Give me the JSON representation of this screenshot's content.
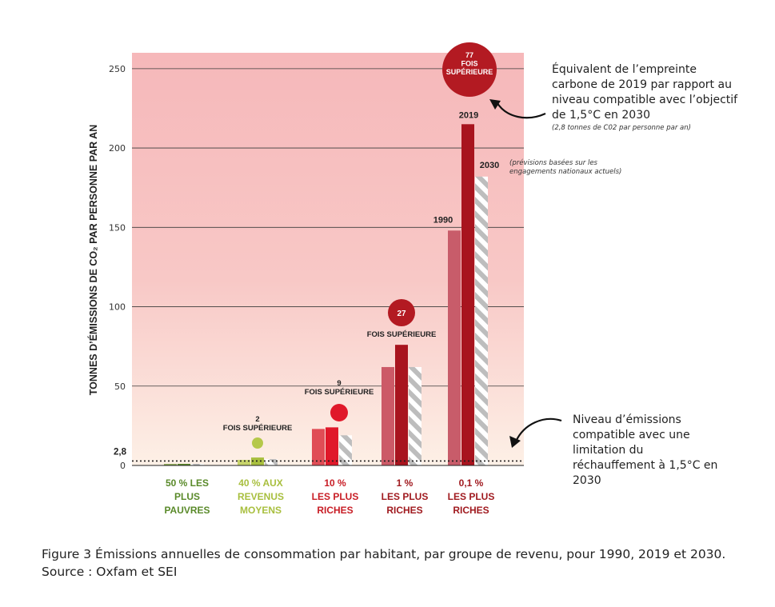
{
  "chart_data": {
    "type": "bar",
    "ylabel": "TONNES D’ÉMISSIONS DE CO₂ PAR PERSONNE PAR AN",
    "ylim": [
      0,
      260
    ],
    "yticks": [
      "0",
      "50",
      "100",
      "150",
      "200",
      "250"
    ],
    "threshold_value": 2.8,
    "threshold_label": "2,8",
    "categories": [
      [
        "50 % LES",
        "PLUS",
        "PAUVRES"
      ],
      [
        "40 % AUX",
        "REVENUS",
        "MOYENS"
      ],
      [
        "10 %",
        "LES PLUS",
        "RICHES"
      ],
      [
        "1 %",
        "LES PLUS",
        "RICHES"
      ],
      [
        "0,1 %",
        "LES PLUS",
        "RICHES"
      ]
    ],
    "category_colors": [
      "#5a8a2a",
      "#a8bf3e",
      "#c81d25",
      "#a01a1f",
      "#a01a1f"
    ],
    "year_labels": [
      "1990",
      "2019",
      "2030"
    ],
    "groups": [
      {
        "values": [
          0.9,
          1.0,
          1.0
        ],
        "colors": [
          "#7da043",
          "#5a8a2a",
          "#9fb88a"
        ]
      },
      {
        "values": [
          3.5,
          5.0,
          4.0
        ],
        "colors": [
          "#c7d46a",
          "#a8bf3e",
          "#9aa4c4"
        ]
      },
      {
        "values": [
          23,
          24,
          19
        ],
        "colors": [
          "#e04d56",
          "#e0182a",
          "#cfcfcf"
        ]
      },
      {
        "values": [
          62,
          76,
          62
        ],
        "colors": [
          "#cc5a67",
          "#a8141e",
          "#bdbdbd"
        ]
      },
      {
        "values": [
          148,
          215,
          182
        ],
        "colors": [
          "#c85c6a",
          "#a8141e",
          "#bdbdbd"
        ]
      }
    ],
    "multipliers": [
      {
        "group": 1,
        "lines": [
          "2",
          "FOIS SUPÉRIEURE"
        ],
        "circle_color": "#b5c84a"
      },
      {
        "group": 2,
        "lines": [
          "9",
          "FOIS SUPÉRIEURE"
        ],
        "circle_color": "#e0182a"
      },
      {
        "group": 3,
        "lines": [
          "27",
          "FOIS SUPÉRIEURE"
        ],
        "circle_color": "#b31a22"
      },
      {
        "group": 4,
        "lines": [
          "77",
          "FOIS",
          "SUPÉRIEURE"
        ],
        "circle_color": "#b31a22"
      }
    ]
  },
  "notes": {
    "top": "Équivalent de l’empreinte carbone de 2019 par rapport au niveau compatible avec l’objectif de 1,5°C en 2030",
    "top_small": "(2,8 tonnes de C02 par personne par an)",
    "projection": "(prévisions basées sur les engagements nationaux actuels)",
    "bottom": "Niveau d’émissions compatible avec une limitation du réchauffement à 1,5°C en 2030"
  },
  "caption": "Figure 3 Émissions annuelles de consommation par habitant, par groupe de revenu, pour 1990, 2019 et 2030. Source : Oxfam et SEI"
}
